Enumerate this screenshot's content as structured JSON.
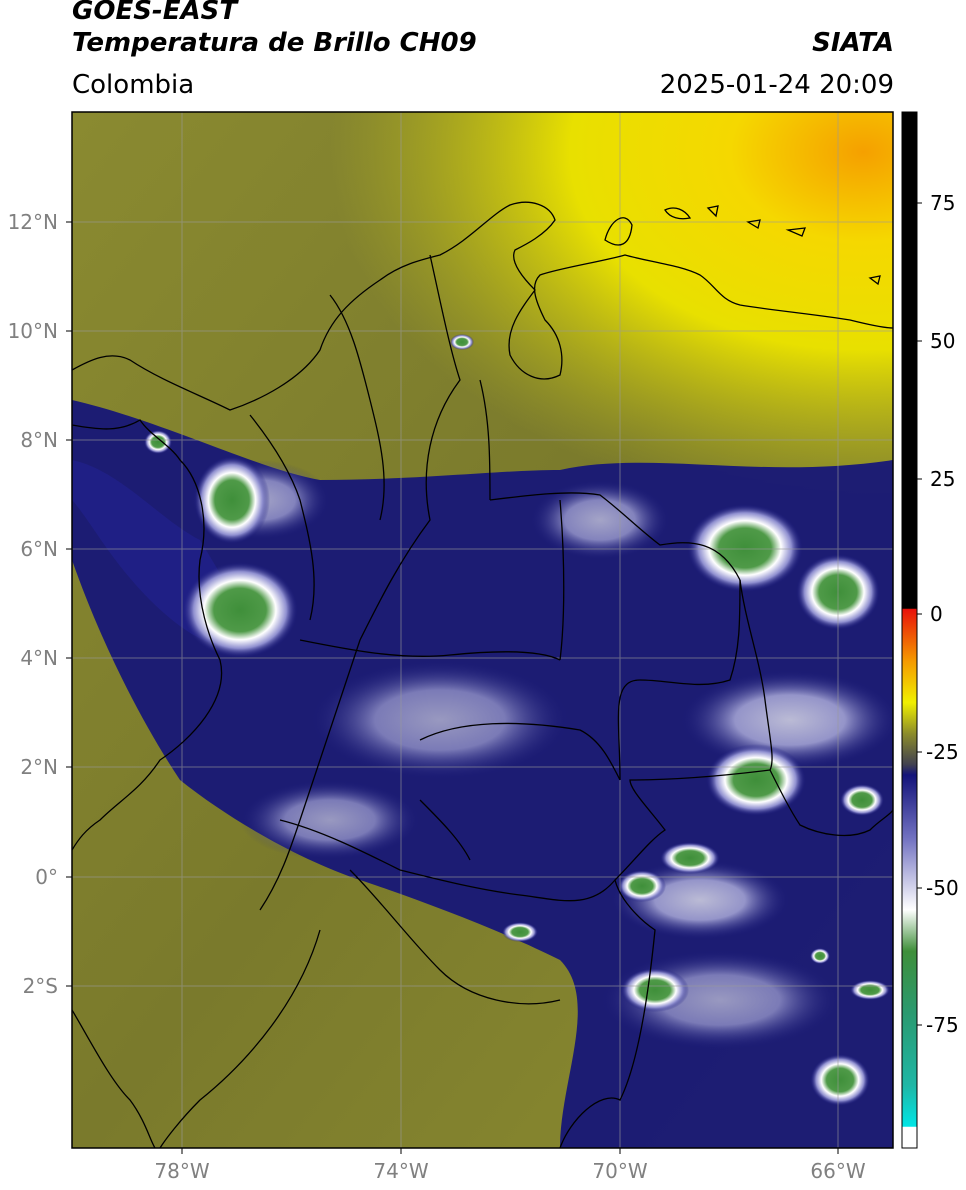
{
  "header": {
    "satellite": "GOES-EAST",
    "product": "Temperatura de Brillo CH09",
    "region": "Colombia",
    "brand": "SIATA",
    "timestamp": "2025-01-24 20:09"
  },
  "map": {
    "lon_range": [
      -80,
      -65
    ],
    "lat_range": [
      -5,
      14
    ],
    "lon_ticks": [
      "78°W",
      "74°W",
      "70°W",
      "66°W"
    ],
    "lat_ticks": [
      "12°N",
      "10°N",
      "8°N",
      "6°N",
      "4°N",
      "2°N",
      "0°",
      "2°S"
    ],
    "grid": true
  },
  "colorbar": {
    "range": [
      -95,
      90
    ],
    "tick_labels": [
      "75",
      "50",
      "25",
      "0",
      "-25",
      "-50",
      "-75"
    ],
    "colors": {
      "black": "#000000",
      "red": "#e8120a",
      "orange": "#f59a00",
      "yellow": "#f0f000",
      "olive": "#8c8c2a",
      "navy": "#13137a",
      "white": "#ffffff",
      "green": "#3f8f3a",
      "teal": "#1fb7a6",
      "cyan": "#00e5e5"
    }
  }
}
